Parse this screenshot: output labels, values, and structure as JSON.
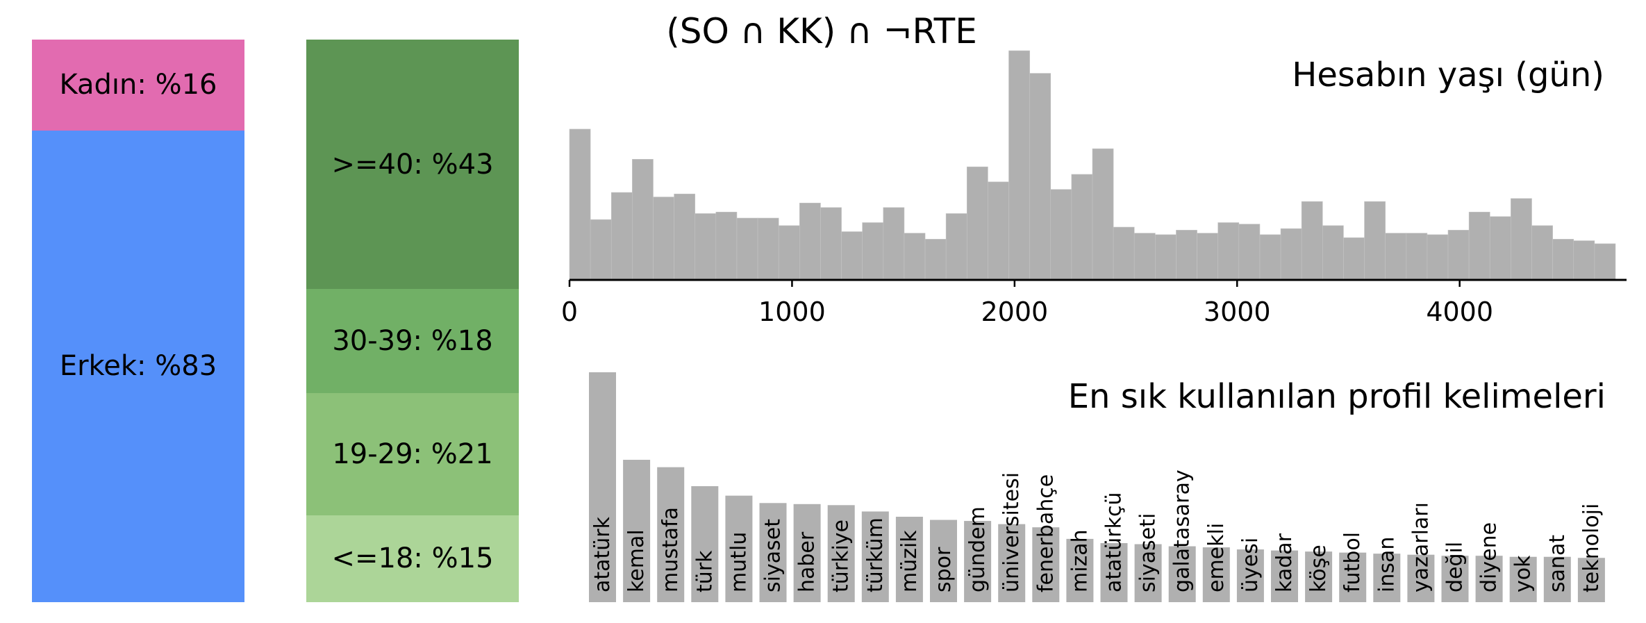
{
  "figure_title": "(SO ∩ KK) ∩ ¬RTE",
  "chart_data": [
    {
      "type": "bar",
      "stacked": true,
      "segments": [
        {
          "label": "Erkek: %83",
          "value": 83,
          "color": "#5590fa"
        },
        {
          "label": "Kadın: %16",
          "value": 16,
          "color": "#e26bb0"
        }
      ]
    },
    {
      "type": "bar",
      "stacked": true,
      "segments": [
        {
          "label": "<=18: %15",
          "value": 15,
          "color": "#acd598"
        },
        {
          "label": "19-29: %21",
          "value": 21,
          "color": "#8cc178"
        },
        {
          "label": "30-39: %18",
          "value": 18,
          "color": "#71b066"
        },
        {
          "label": ">=40: %43",
          "value": 43,
          "color": "#5d9554"
        }
      ]
    },
    {
      "type": "bar",
      "title": "Hesabın yaşı (gün)",
      "bin_width": 94,
      "xlim": [
        0,
        4750
      ],
      "xticks": [
        0,
        1000,
        2000,
        3000,
        4000
      ],
      "xtick_labels": [
        "0",
        "1000",
        "2000",
        "3000",
        "4000"
      ],
      "values": [
        100,
        40,
        58,
        80,
        55,
        57,
        44,
        45,
        41,
        41,
        36,
        51,
        48,
        32,
        38,
        48,
        31,
        27,
        44,
        75,
        65,
        152,
        137,
        60,
        70,
        87,
        35,
        31,
        30,
        33,
        31,
        38,
        37,
        30,
        34,
        52,
        36,
        28,
        52,
        31,
        31,
        30,
        33,
        45,
        42,
        54,
        36,
        27,
        26,
        24
      ],
      "color": "#b0b0b0"
    },
    {
      "type": "bar",
      "title": "En sık kullanılan profil kelimeleri",
      "categories": [
        "atatürk",
        "kemal",
        "mustafa",
        "türk",
        "mutlu",
        "siyaset",
        "haber",
        "türkiye",
        "türküm",
        "müzik",
        "spor",
        "gündem",
        "üniversitesi",
        "fenerbahçe",
        "mizah",
        "atatürkçü",
        "siyaseti",
        "galatasaray",
        "emekli",
        "üyesi",
        "kadar",
        "köşe",
        "futbol",
        "insan",
        "yazarları",
        "değil",
        "diyene",
        "yok",
        "sanat",
        "teknoloji"
      ],
      "values": [
        218,
        135,
        128,
        110,
        101,
        94,
        93,
        92,
        86,
        81,
        78,
        77,
        74,
        71,
        60,
        56,
        55,
        53,
        52,
        50,
        49,
        48,
        47,
        46,
        45,
        44,
        44,
        43,
        43,
        42
      ],
      "color": "#b0b0b0"
    }
  ]
}
